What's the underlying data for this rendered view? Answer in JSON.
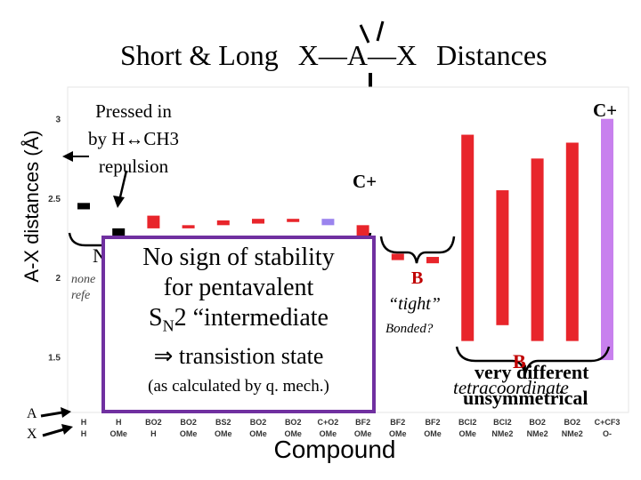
{
  "title": {
    "prefix": "Short & Long",
    "molecule": "X—A—X",
    "suffix": "Distances"
  },
  "axis_title_y": "A-X distances (Å)",
  "axis_title_x": "Compound",
  "side_labels": {
    "a": "A",
    "x": "X"
  },
  "annotations": {
    "pressed_1": "Pressed in",
    "pressed_2": "by H↔CH3",
    "pressed_3": "repulsion",
    "cplus_small": "C+",
    "cplus_big": "C+",
    "frag_n": "N",
    "frag_non": "none",
    "frag_ref": "refe",
    "b_small": "B",
    "tight": "“tight”",
    "bonded": "Bonded?",
    "b_big": "B",
    "very_different": "very different",
    "tetracoordinate": "tetracoordinate",
    "unsymmetrical": "unsymmetrical"
  },
  "callout": {
    "line1": "No sign of stability",
    "line2": "for pentavalent",
    "line3_pre": "S",
    "line3_sub": "N",
    "line3_post": "2 “intermediate",
    "line4": "⇒ transistion state",
    "line5": "(as calculated by q. mech.)"
  },
  "chart_data": {
    "type": "bar",
    "title": "Short & Long X—A—X Distances",
    "xlabel": "Compound",
    "ylabel": "A-X distances (Å)",
    "ylim": [
      1.15,
      3.2
    ],
    "yticks": [
      1.5,
      2,
      2.5,
      3
    ],
    "categories": [
      {
        "top": "H",
        "bottom": "H"
      },
      {
        "top": "H",
        "bottom": "OMe"
      },
      {
        "top": "BO2",
        "bottom": "H"
      },
      {
        "top": "BO2",
        "bottom": "OMe"
      },
      {
        "top": "BS2",
        "bottom": "OMe"
      },
      {
        "top": "BO2",
        "bottom": "OMe"
      },
      {
        "top": "BO2",
        "bottom": "OMe"
      },
      {
        "top": "C+O2",
        "bottom": "OMe"
      },
      {
        "top": "BF2",
        "bottom": "OMe"
      },
      {
        "top": "BF2",
        "bottom": "OMe"
      },
      {
        "top": "BF2",
        "bottom": "OMe"
      },
      {
        "top": "BCl2",
        "bottom": "OMe"
      },
      {
        "top": "BCl2",
        "bottom": "NMe2"
      },
      {
        "top": "BO2",
        "bottom": "NMe2"
      },
      {
        "top": "BO2",
        "bottom": "NMe2"
      },
      {
        "top": "C+CF3",
        "bottom": "O-"
      }
    ],
    "series": [
      {
        "values": [
          [
            2.43,
            2.47
          ],
          [
            2.26,
            2.31
          ],
          [
            2.31,
            2.39
          ],
          [
            2.31,
            2.33
          ],
          [
            2.33,
            2.36
          ],
          [
            2.34,
            2.37
          ],
          [
            2.35,
            2.37
          ],
          [
            2.33,
            2.37
          ],
          [
            2.23,
            2.33
          ],
          [
            2.11,
            2.15
          ],
          [
            2.09,
            2.13
          ],
          [
            1.6,
            2.9
          ],
          [
            1.7,
            2.55
          ],
          [
            1.6,
            2.75
          ],
          [
            1.6,
            2.85
          ],
          [
            1.48,
            3.0
          ]
        ]
      }
    ],
    "bar_colors": [
      "#000000",
      "#000000",
      "#e8252b",
      "#e8252b",
      "#e8252b",
      "#e8252b",
      "#e8252b",
      "#9b84ee",
      "#e8252b",
      "#e8252b",
      "#e8252b",
      "#e8252b",
      "#e8252b",
      "#e8252b",
      "#e8252b",
      "#c880ee"
    ],
    "grid": false,
    "legend": "none"
  }
}
